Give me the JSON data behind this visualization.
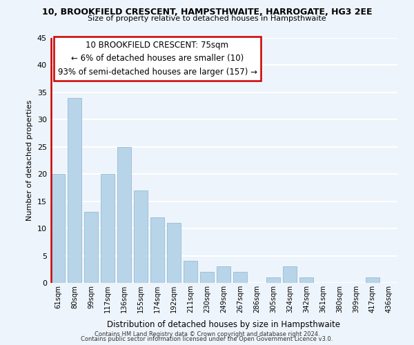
{
  "title": "10, BROOKFIELD CRESCENT, HAMPSTHWAITE, HARROGATE, HG3 2EE",
  "subtitle": "Size of property relative to detached houses in Hampsthwaite",
  "xlabel": "Distribution of detached houses by size in Hampsthwaite",
  "ylabel": "Number of detached properties",
  "categories": [
    "61sqm",
    "80sqm",
    "99sqm",
    "117sqm",
    "136sqm",
    "155sqm",
    "174sqm",
    "192sqm",
    "211sqm",
    "230sqm",
    "249sqm",
    "267sqm",
    "286sqm",
    "305sqm",
    "324sqm",
    "342sqm",
    "361sqm",
    "380sqm",
    "399sqm",
    "417sqm",
    "436sqm"
  ],
  "values": [
    20,
    34,
    13,
    20,
    25,
    17,
    12,
    11,
    4,
    2,
    3,
    2,
    0,
    1,
    3,
    1,
    0,
    0,
    0,
    1,
    0
  ],
  "bar_color": "#b8d4e8",
  "vline_color": "#cc0000",
  "annotation_title": "10 BROOKFIELD CRESCENT: 75sqm",
  "annotation_line1": "← 6% of detached houses are smaller (10)",
  "annotation_line2": "93% of semi-detached houses are larger (157) →",
  "annotation_box_color": "#ffffff",
  "annotation_box_edge": "#cc0000",
  "ylim": [
    0,
    45
  ],
  "yticks": [
    0,
    5,
    10,
    15,
    20,
    25,
    30,
    35,
    40,
    45
  ],
  "footer1": "Contains HM Land Registry data © Crown copyright and database right 2024.",
  "footer2": "Contains public sector information licensed under the Open Government Licence v3.0.",
  "bg_color": "#eef4fb",
  "grid_color": "#ffffff"
}
